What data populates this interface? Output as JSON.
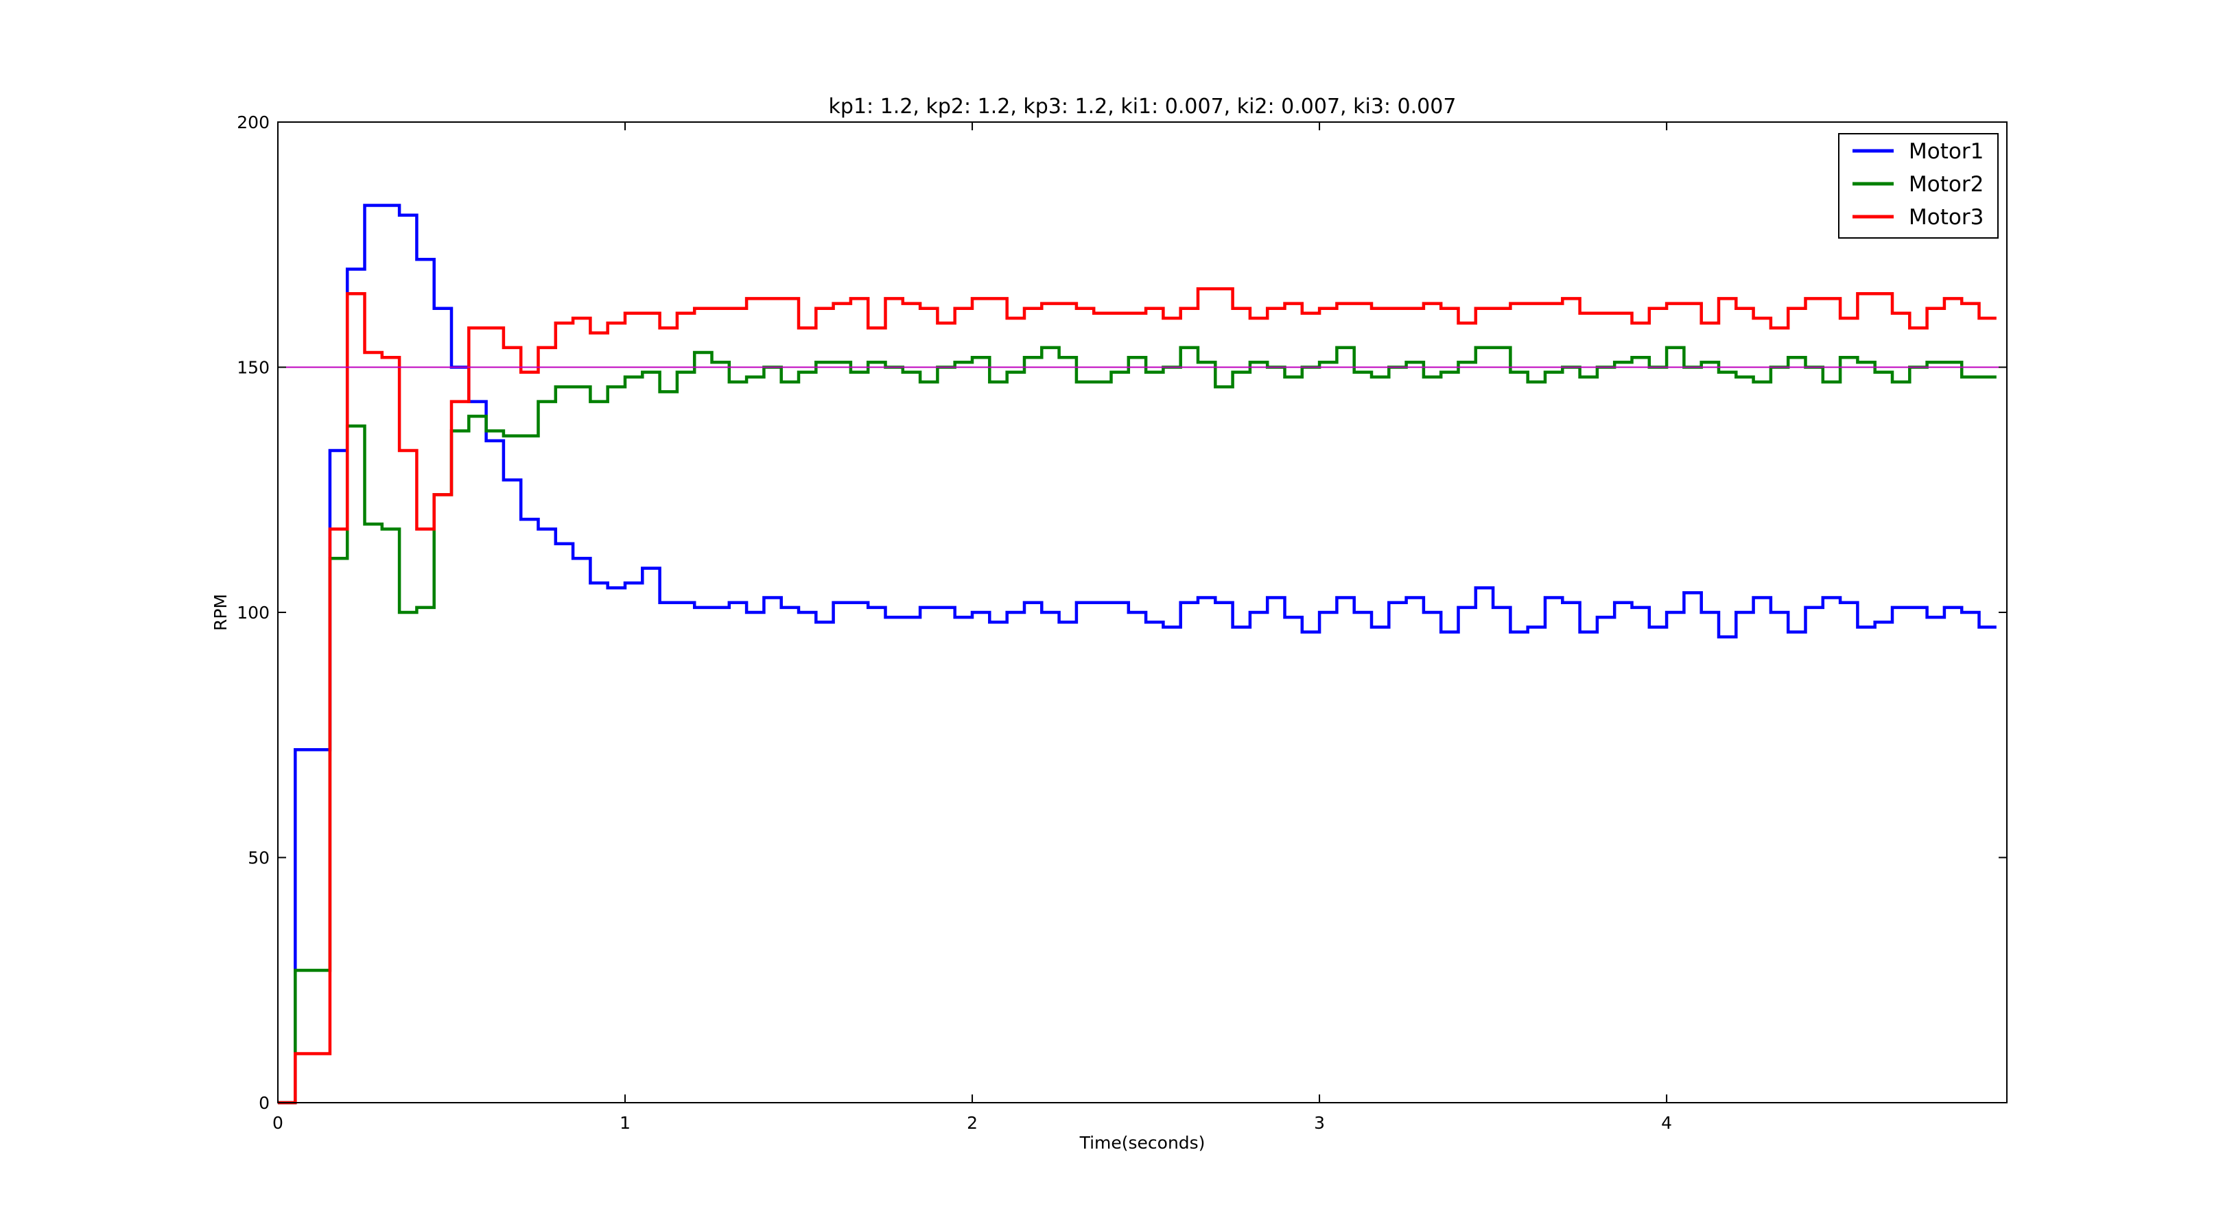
{
  "chart_data": {
    "type": "line",
    "title": "kp1: 1.2, kp2: 1.2, kp3: 1.2, ki1: 0.007, ki2: 0.007, ki3: 0.007",
    "xlabel": "Time(seconds)",
    "ylabel": "RPM",
    "xlim": [
      0,
      4.98
    ],
    "ylim": [
      0,
      200
    ],
    "x_ticks": [
      0,
      1,
      2,
      3,
      4
    ],
    "y_ticks": [
      0,
      50,
      100,
      150,
      200
    ],
    "grid": false,
    "legend_position": "top-right",
    "step": 0.05,
    "setpoint": {
      "value": 150,
      "color": "#bf00bf"
    },
    "series": [
      {
        "name": "Motor1",
        "color": "#0000ff",
        "values": [
          0,
          72,
          72,
          133,
          170,
          183,
          183,
          181,
          172,
          162,
          150,
          143,
          135,
          127,
          119,
          117,
          114,
          111,
          106,
          105,
          106,
          109,
          102,
          102,
          101,
          101,
          102,
          100,
          103,
          101,
          100,
          98,
          102,
          102,
          101,
          99,
          99,
          101,
          101,
          99,
          100,
          98,
          100,
          102,
          100,
          98,
          102,
          102,
          102,
          100,
          98,
          97,
          102,
          103,
          102,
          97,
          100,
          103,
          99,
          96,
          100,
          103,
          100,
          97,
          102,
          103,
          100,
          96,
          101,
          105,
          101,
          96,
          97,
          103,
          102,
          96,
          99,
          102,
          101,
          97,
          100,
          104,
          100,
          95,
          100,
          103,
          100,
          96,
          101,
          103,
          102,
          97,
          98,
          101,
          101,
          99,
          101,
          100,
          97
        ]
      },
      {
        "name": "Motor2",
        "color": "#008000",
        "values": [
          0,
          27,
          27,
          111,
          138,
          118,
          117,
          100,
          101,
          124,
          137,
          140,
          137,
          136,
          136,
          143,
          146,
          146,
          143,
          146,
          148,
          149,
          145,
          149,
          153,
          151,
          147,
          148,
          150,
          147,
          149,
          151,
          151,
          149,
          151,
          150,
          149,
          147,
          150,
          151,
          152,
          147,
          149,
          152,
          154,
          152,
          147,
          147,
          149,
          152,
          149,
          150,
          154,
          151,
          146,
          149,
          151,
          150,
          148,
          150,
          151,
          154,
          149,
          148,
          150,
          151,
          148,
          149,
          151,
          154,
          154,
          149,
          147,
          149,
          150,
          148,
          150,
          151,
          152,
          150,
          154,
          150,
          151,
          149,
          148,
          147,
          150,
          152,
          150,
          147,
          152,
          151,
          149,
          147,
          150,
          151,
          151,
          148,
          148
        ]
      },
      {
        "name": "Motor3",
        "color": "#ff0000",
        "values": [
          0,
          10,
          10,
          117,
          165,
          153,
          152,
          133,
          117,
          124,
          143,
          158,
          158,
          154,
          149,
          154,
          159,
          160,
          157,
          159,
          161,
          161,
          158,
          161,
          162,
          162,
          162,
          164,
          164,
          164,
          158,
          162,
          163,
          164,
          158,
          164,
          163,
          162,
          159,
          162,
          164,
          164,
          160,
          162,
          163,
          163,
          162,
          161,
          161,
          161,
          162,
          160,
          162,
          166,
          166,
          162,
          160,
          162,
          163,
          161,
          162,
          163,
          163,
          162,
          162,
          162,
          163,
          162,
          159,
          162,
          162,
          163,
          163,
          163,
          164,
          161,
          161,
          161,
          159,
          162,
          163,
          163,
          159,
          164,
          162,
          160,
          158,
          162,
          164,
          164,
          160,
          165,
          165,
          161,
          158,
          162,
          164,
          163,
          160
        ]
      }
    ]
  }
}
